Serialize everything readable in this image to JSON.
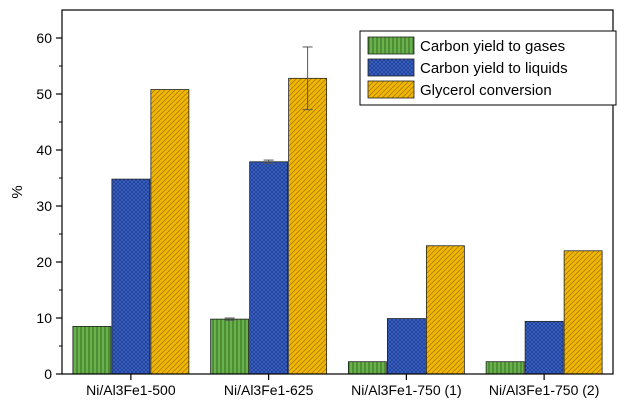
{
  "chart_data": {
    "type": "bar",
    "title": "",
    "xlabel": "",
    "ylabel": "%",
    "ylim": [
      0,
      65
    ],
    "yticks": [
      0,
      10,
      20,
      30,
      40,
      50,
      60
    ],
    "grid": false,
    "legend_position": "top-right",
    "categories": [
      "Ni/Al3Fe1-500",
      "Ni/Al3Fe1-625",
      "Ni/Al3Fe1-750 (1)",
      "Ni/Al3Fe1-750 (2)"
    ],
    "series": [
      {
        "name": "Carbon yield to gases",
        "color": "#6ab04c",
        "pattern": "vertical-lines",
        "values": [
          8.5,
          9.8,
          2.2,
          2.2
        ]
      },
      {
        "name": "Carbon yield to liquids",
        "color": "#3a64c8",
        "pattern": "cross-hatch",
        "values": [
          34.8,
          37.9,
          9.9,
          9.4
        ]
      },
      {
        "name": "Glycerol conversion",
        "color": "#f2b705",
        "pattern": "diagonal-lines",
        "values": [
          50.8,
          52.8,
          22.9,
          22.0
        ]
      }
    ],
    "error_bars": [
      {
        "series": "Carbon yield to gases",
        "category": "Ni/Al3Fe1-625",
        "low": 9.6,
        "high": 10.0
      },
      {
        "series": "Carbon yield to liquids",
        "category": "Ni/Al3Fe1-625",
        "low": 37.6,
        "high": 38.2
      },
      {
        "series": "Glycerol conversion",
        "category": "Ni/Al3Fe1-625",
        "low": 47.2,
        "high": 58.4
      }
    ]
  }
}
